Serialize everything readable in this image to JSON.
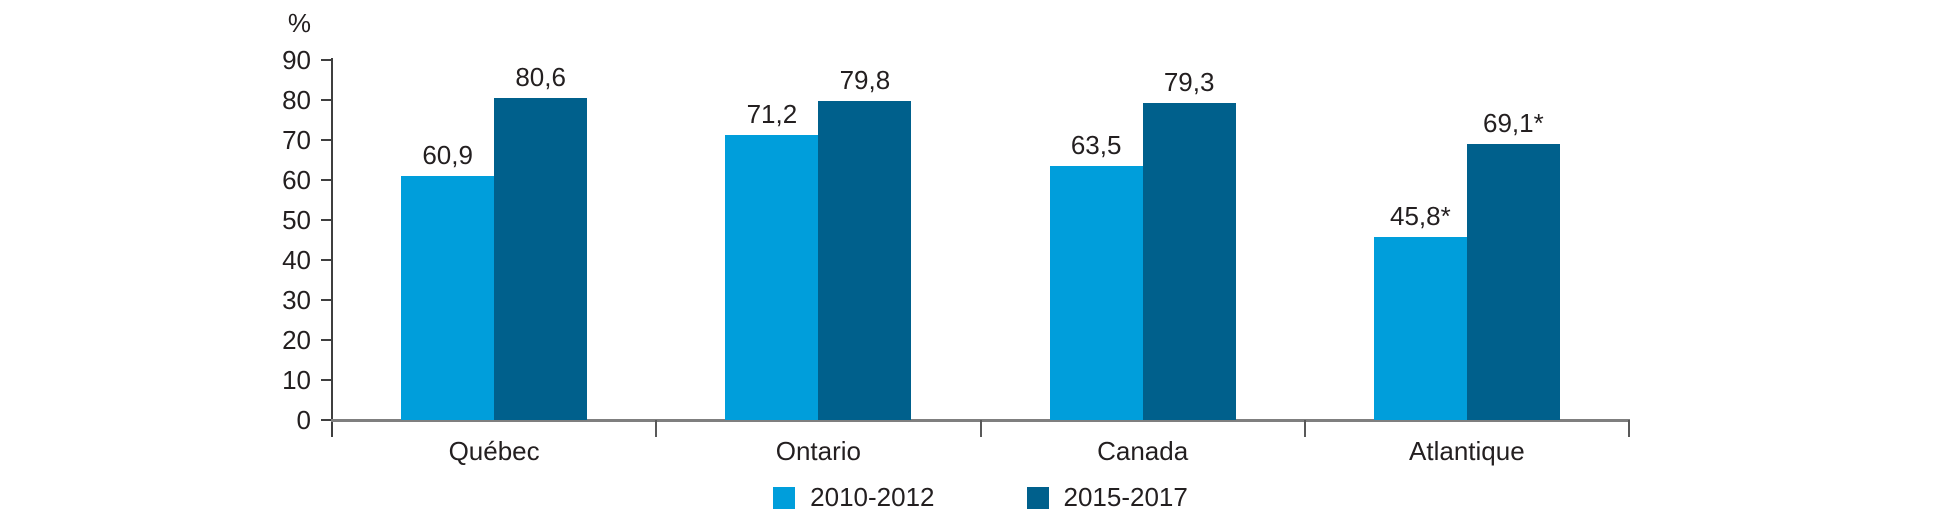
{
  "chart_data": {
    "type": "bar",
    "title": "",
    "ylabel": "%",
    "xlabel": "",
    "ylim": [
      0,
      90
    ],
    "ytick_step": 10,
    "grid": false,
    "legend_position": "bottom",
    "categories": [
      "Québec",
      "Ontario",
      "Canada",
      "Atlantique"
    ],
    "series": [
      {
        "name": "2010-2012",
        "color": "#009EDB",
        "values": [
          60.9,
          71.2,
          63.5,
          45.8
        ],
        "labels": [
          "60,9",
          "71,2",
          "63,5",
          "45,8*"
        ]
      },
      {
        "name": "2015-2017",
        "color": "#00608C",
        "values": [
          80.6,
          79.8,
          79.3,
          69.1
        ],
        "labels": [
          "80,6",
          "79,8",
          "79,3",
          "69,1*"
        ]
      }
    ],
    "axis_colors": {
      "y_axis": "#3F3F3F",
      "x_baseline": "#7F7F7F",
      "category_tick": "#595959"
    },
    "text_color": "#231F20"
  }
}
